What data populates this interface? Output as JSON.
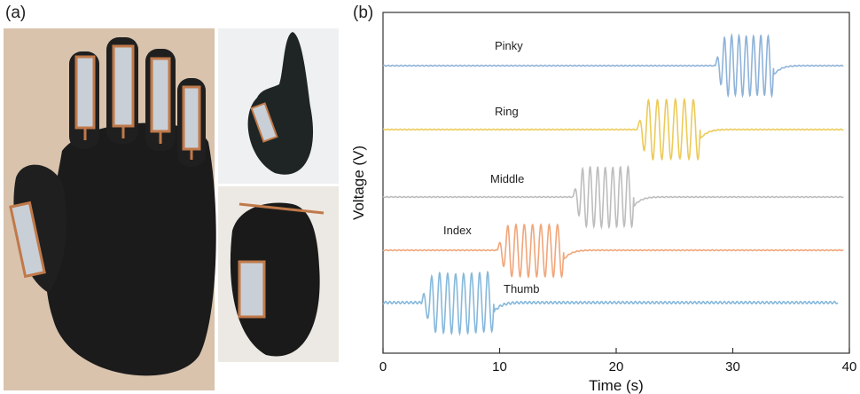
{
  "panels": {
    "a": "(a)",
    "b": "(b)"
  },
  "chart_data": {
    "type": "line",
    "xlabel": "Time (s)",
    "ylabel": "Voltage (V)",
    "xlim": [
      0,
      40
    ],
    "x_ticks": [
      0,
      10,
      20,
      30,
      40
    ],
    "y_ticks": [],
    "grid": false,
    "legend": "none",
    "series": [
      {
        "name": "Pinky",
        "color": "#8fb3d9",
        "burst_start": 28.5,
        "burst_end": 33.5,
        "cycles": 8,
        "amplitude": 0.8
      },
      {
        "name": "Ring",
        "color": "#eccb5a",
        "burst_start": 21.8,
        "burst_end": 27.2,
        "cycles": 7,
        "amplitude": 0.8
      },
      {
        "name": "Middle",
        "color": "#bdbdbd",
        "burst_start": 16.3,
        "burst_end": 21.5,
        "cycles": 8,
        "amplitude": 0.8
      },
      {
        "name": "Index",
        "color": "#f0a67a",
        "burst_start": 9.8,
        "burst_end": 15.5,
        "cycles": 8,
        "amplitude": 0.7
      },
      {
        "name": "Thumb",
        "color": "#86b9dc",
        "burst_start": 3.3,
        "burst_end": 9.5,
        "cycles": 9,
        "amplitude": 0.8
      }
    ]
  }
}
